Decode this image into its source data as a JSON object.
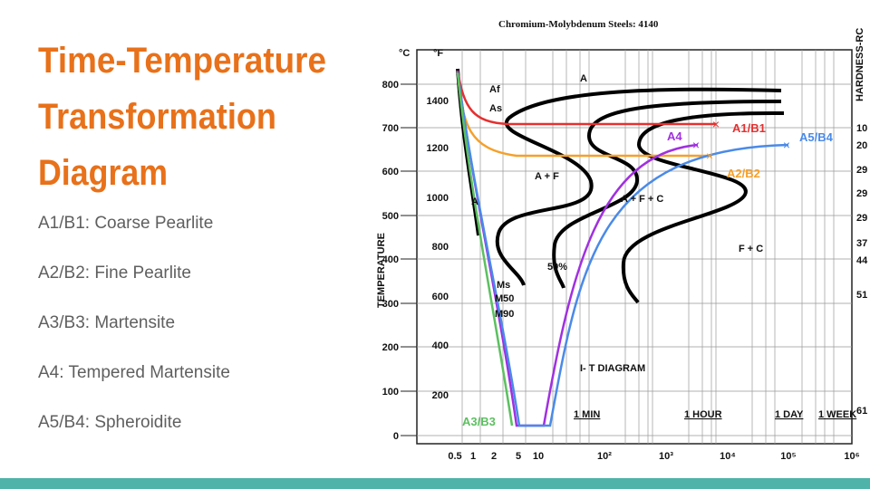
{
  "header": {
    "title_lines": [
      "Time-Temperature",
      "Transformation",
      "Diagram"
    ]
  },
  "list": [
    "A1/B1: Coarse Pearlite",
    "A2/B2: Fine Pearlite",
    "A3/B3: Martensite",
    "A4: Tempered Martensite",
    "A5/B4: Spheroidite"
  ],
  "figure": {
    "title": "Chromium-Molybdenum Steels:   4140",
    "unit_c": "°C",
    "unit_f": "°F",
    "y_label": "TEMPERATURE",
    "hardness_label": "HARDNESS-RC",
    "c_ticks": [
      "800",
      "700",
      "600",
      "500",
      "400",
      "300",
      "200",
      "100",
      "0"
    ],
    "f_ticks": [
      "1400",
      "1200",
      "1000",
      "800",
      "600",
      "400",
      "200"
    ],
    "hardness_ticks": [
      "10",
      "20",
      "29",
      "29",
      "29",
      "37",
      "44",
      "51",
      "61"
    ],
    "x_ticks": [
      "0.5",
      "1",
      "2",
      "5",
      "10",
      "10²",
      "10³",
      "10⁴",
      "10⁵",
      "10⁶"
    ],
    "regions": [
      "A",
      "Af",
      "As",
      "A + F",
      "A + F + C",
      "F + C",
      "A",
      "50%",
      "Ms",
      "M50",
      "M90",
      "I- T  DIAGRAM"
    ],
    "time_marks": [
      "1 MIN",
      "1 HOUR",
      "1 DAY",
      "1 WEEK"
    ],
    "curve_labels": [
      "A1/B1",
      "A4",
      "A5/B4",
      "A2/B2",
      "A3/B3"
    ]
  }
}
